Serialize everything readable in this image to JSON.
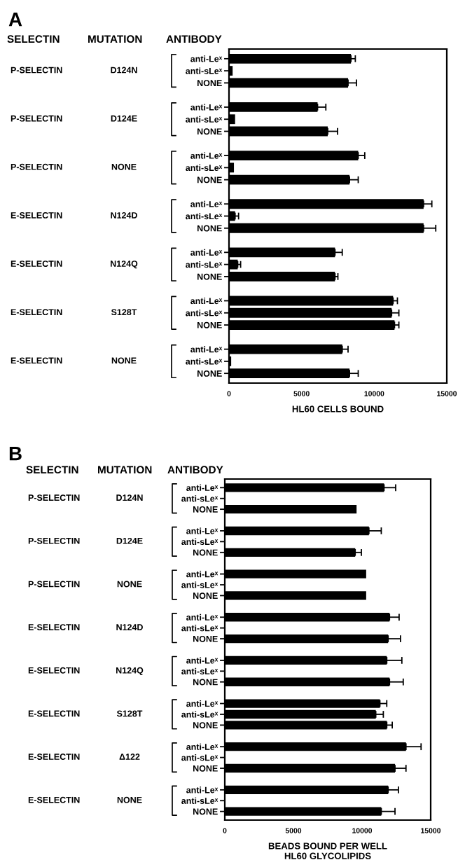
{
  "chart_data": [
    {
      "type": "bar",
      "orientation": "horizontal",
      "xlabel": "HL60 CELLS BOUND",
      "categories": [
        "anti-Leˣ",
        "anti-sLeˣ",
        "NONE",
        "anti-Leˣ",
        "anti-sLeˣ",
        "NONE",
        "anti-Leˣ",
        "anti-sLeˣ",
        "NONE",
        "anti-Leˣ",
        "anti-sLeˣ",
        "NONE",
        "anti-Leˣ",
        "anti-sLeˣ",
        "NONE",
        "anti-Leˣ",
        "anti-sLeˣ",
        "NONE",
        "anti-Leˣ",
        "anti-sLeˣ",
        "NONE"
      ],
      "series": [
        {
          "color": "#000000",
          "values": [
            8400,
            250,
            8200,
            6100,
            420,
            6800,
            8900,
            340,
            8300,
            13400,
            420,
            13400,
            7300,
            600,
            7300,
            11300,
            11200,
            11400,
            7800,
            150,
            8300
          ],
          "errors": [
            [
              8400,
              8700
            ],
            null,
            [
              8200,
              8780
            ],
            [
              6100,
              6670
            ],
            null,
            [
              6800,
              7480
            ],
            [
              8900,
              9350
            ],
            null,
            [
              8300,
              8900
            ],
            [
              13400,
              13970
            ],
            [
              420,
              660
            ],
            [
              13400,
              14240
            ],
            [
              7300,
              7800
            ],
            [
              600,
              800
            ],
            [
              7300,
              7500
            ],
            [
              11300,
              11600
            ],
            [
              11200,
              11700
            ],
            [
              11400,
              11700
            ],
            [
              7800,
              8200
            ],
            null,
            [
              8300,
              8900
            ]
          ]
        }
      ],
      "xlim": [
        0,
        15000
      ],
      "xticks": [
        0,
        5000,
        10000,
        15000
      ],
      "grid": false,
      "legend": false,
      "annotations": [
        "A",
        "SELECTIN",
        "MUTATION",
        "ANTIBODY",
        "P-SELECTIN",
        "D124N",
        "P-SELECTIN",
        "D124E",
        "P-SELECTIN",
        "NONE",
        "E-SELECTIN",
        "N124D",
        "E-SELECTIN",
        "N124Q",
        "E-SELECTIN",
        "S128T",
        "E-SELECTIN",
        "NONE"
      ]
    },
    {
      "type": "bar",
      "orientation": "horizontal",
      "xlabel": "BEADS BOUND PER WELL\nHL60 GLYCOLIPIDS",
      "categories": [
        "anti-Leˣ",
        "anti-sLeˣ",
        "NONE",
        "anti-Leˣ",
        "anti-sLeˣ",
        "NONE",
        "anti-Leˣ",
        "anti-sLeˣ",
        "NONE",
        "anti-Leˣ",
        "anti-sLeˣ",
        "NONE",
        "anti-Leˣ",
        "anti-sLeˣ",
        "NONE",
        "anti-Leˣ",
        "anti-sLeˣ",
        "NONE",
        "anti-Leˣ",
        "anti-sLeˣ",
        "NONE",
        "anti-Leˣ",
        "anti-sLeˣ",
        "NONE"
      ],
      "series": [
        {
          "color": "#000000",
          "values": [
            11600,
            0,
            9600,
            10500,
            0,
            9500,
            10300,
            0,
            10300,
            12000,
            0,
            11900,
            11800,
            0,
            12000,
            11300,
            11000,
            11800,
            13200,
            0,
            12400,
            11900,
            0,
            11400
          ],
          "errors": [
            [
              11600,
              12450
            ],
            null,
            null,
            [
              10500,
              11400
            ],
            null,
            [
              9500,
              9950
            ],
            null,
            null,
            null,
            [
              12000,
              12700
            ],
            null,
            [
              11900,
              12800
            ],
            [
              11800,
              12900
            ],
            null,
            [
              12000,
              13000
            ],
            [
              11300,
              11800
            ],
            [
              11000,
              11550
            ],
            [
              11800,
              12200
            ],
            [
              13200,
              14300
            ],
            null,
            [
              12400,
              13200
            ],
            [
              11900,
              12650
            ],
            null,
            [
              11400,
              12400
            ]
          ]
        }
      ],
      "xlim": [
        0,
        15000
      ],
      "xticks": [
        0,
        5000,
        10000,
        15000
      ],
      "grid": false,
      "legend": false,
      "annotations": [
        "B",
        "SELECTIN",
        "MUTATION",
        "ANTIBODY",
        "P-SELECTIN",
        "D124N",
        "P-SELECTIN",
        "D124E",
        "P-SELECTIN",
        "NONE",
        "E-SELECTIN",
        "N124D",
        "E-SELECTIN",
        "N124Q",
        "E-SELECTIN",
        "S128T",
        "E-SELECTIN",
        "Δ122",
        "E-SELECTIN",
        "NONE"
      ]
    }
  ]
}
